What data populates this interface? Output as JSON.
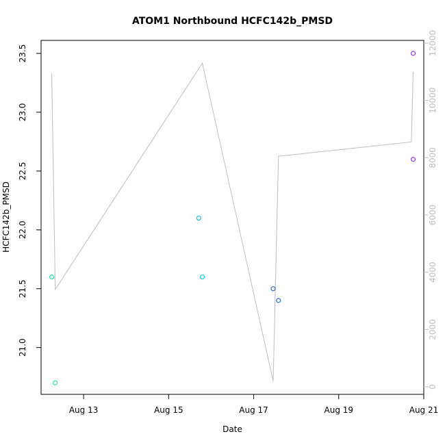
{
  "chart_data": {
    "type": "scatter",
    "title": "ATOM1 Northbound HCFC142b_PMSD",
    "xlabel": "Date",
    "ylabel": "HCFC142b_PMSD",
    "x_ticks": [
      {
        "date": "2016-08-13",
        "label": "Aug 13"
      },
      {
        "date": "2016-08-15",
        "label": "Aug 15"
      },
      {
        "date": "2016-08-17",
        "label": "Aug 17"
      },
      {
        "date": "2016-08-19",
        "label": "Aug 19"
      },
      {
        "date": "2016-08-21",
        "label": "Aug 21"
      }
    ],
    "xlim": [
      "2016-08-12T00:00",
      "2016-08-21T00:00"
    ],
    "y_left": {
      "ticks": [
        21.0,
        21.5,
        22.0,
        22.5,
        23.0,
        23.5
      ],
      "tick_labels": [
        "21.0",
        "21.5",
        "22.0",
        "22.5",
        "23.0",
        "23.5"
      ],
      "lim": [
        20.8,
        23.5
      ]
    },
    "y_right": {
      "ticks": [
        0,
        2000,
        4000,
        6000,
        8000,
        10000,
        12000
      ],
      "tick_labels": [
        "0",
        "2000",
        "4000",
        "6000",
        "8000",
        "10000",
        "12000"
      ],
      "lim": [
        0,
        12000
      ],
      "color": "#bebebe"
    },
    "points": [
      {
        "x": "2016-08-12T06:00",
        "y": 21.6,
        "color": "#33e6b0"
      },
      {
        "x": "2016-08-12T08:00",
        "y": 20.7,
        "color": "#33e6b0"
      },
      {
        "x": "2016-08-15T17:00",
        "y": 22.1,
        "color": "#1ec8e6"
      },
      {
        "x": "2016-08-15T19:00",
        "y": 21.6,
        "color": "#1ec8e6"
      },
      {
        "x": "2016-08-17T11:00",
        "y": 21.5,
        "color": "#2c6cd8"
      },
      {
        "x": "2016-08-17T14:00",
        "y": 21.4,
        "color": "#2c6cd8"
      },
      {
        "x": "2016-08-20T18:00",
        "y": 23.5,
        "color": "#8a3cf0"
      },
      {
        "x": "2016-08-20T18:00",
        "y": 22.6,
        "color": "#8a3cf0"
      }
    ],
    "line_series": {
      "axis": "right",
      "color": "#bebebe",
      "points": [
        {
          "x": "2016-08-12T06:00",
          "y": 10950
        },
        {
          "x": "2016-08-12T08:00",
          "y": 3400
        },
        {
          "x": "2016-08-15T19:00",
          "y": 11300
        },
        {
          "x": "2016-08-17T11:00",
          "y": 200
        },
        {
          "x": "2016-08-17T14:00",
          "y": 8050
        },
        {
          "x": "2016-08-20T17:00",
          "y": 8550
        },
        {
          "x": "2016-08-20T18:00",
          "y": 11000
        }
      ]
    },
    "grid": false,
    "legend": "none"
  }
}
